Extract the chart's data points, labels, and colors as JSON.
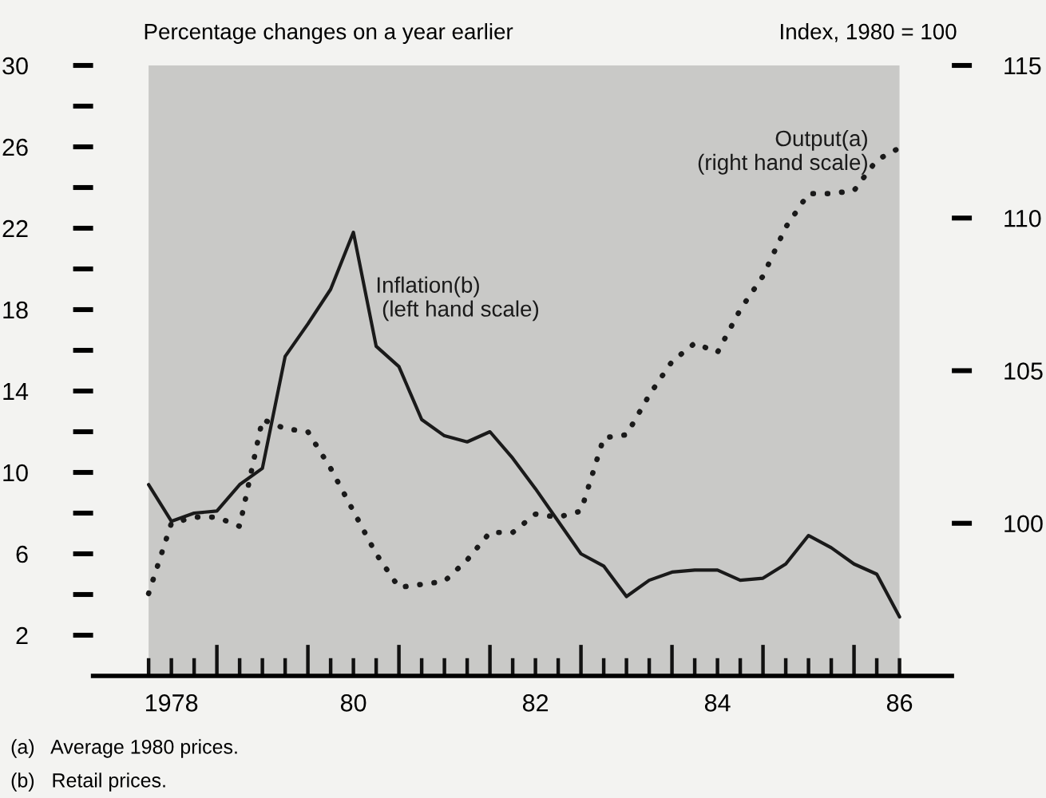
{
  "chart_data": {
    "type": "line",
    "ylabel": "Percentage changes on a year earlier",
    "y2label": "Index, 1980 = 100",
    "categories": [
      null,
      "1978",
      null,
      null,
      null,
      null,
      null,
      null,
      null,
      "80",
      null,
      null,
      null,
      null,
      null,
      null,
      null,
      "82",
      null,
      null,
      null,
      null,
      null,
      null,
      null,
      "84",
      null,
      null,
      null,
      null,
      null,
      null,
      null,
      "86"
    ],
    "series": [
      {
        "name": "Inflation(b)\n (left hand scale)",
        "color": "#1a1a1a",
        "line_style": "solid",
        "values": [
          9.4,
          7.6,
          8.0,
          8.1,
          9.4,
          10.2,
          15.7,
          17.3,
          19.0,
          21.8,
          16.2,
          15.2,
          12.6,
          11.8,
          11.5,
          12.0,
          10.7,
          9.2,
          7.6,
          6.0,
          5.4,
          3.9,
          4.7,
          5.1,
          5.2,
          5.2,
          4.7,
          4.8,
          5.5,
          6.9,
          6.3,
          5.5,
          5.0,
          2.9
        ]
      },
      {
        "name": "Output(a)\n (right hand scale)",
        "color": "#1a1a1a",
        "line_style": "dotted",
        "axis": "y2",
        "values": [
          97.7,
          100.0,
          100.2,
          100.2,
          99.9,
          103.4,
          103.1,
          103.0,
          101.8,
          100.4,
          99.0,
          97.9,
          98.0,
          98.1,
          98.8,
          99.7,
          99.7,
          100.3,
          100.2,
          100.4,
          102.8,
          102.9,
          104.2,
          105.3,
          105.9,
          105.6,
          107.0,
          108.1,
          109.7,
          110.8,
          110.8,
          110.9,
          111.9,
          112.3
        ]
      }
    ],
    "ylim": [
      0,
      30
    ],
    "yticks": [
      2,
      6,
      10,
      14,
      18,
      22,
      26,
      30
    ],
    "y2lim": [
      95,
      115
    ],
    "y2ticks": [
      100,
      105,
      110,
      115
    ],
    "annotations": [
      "(a)   Average 1980 prices.",
      "(b)   Retail prices."
    ],
    "grid": false,
    "legend": false
  }
}
